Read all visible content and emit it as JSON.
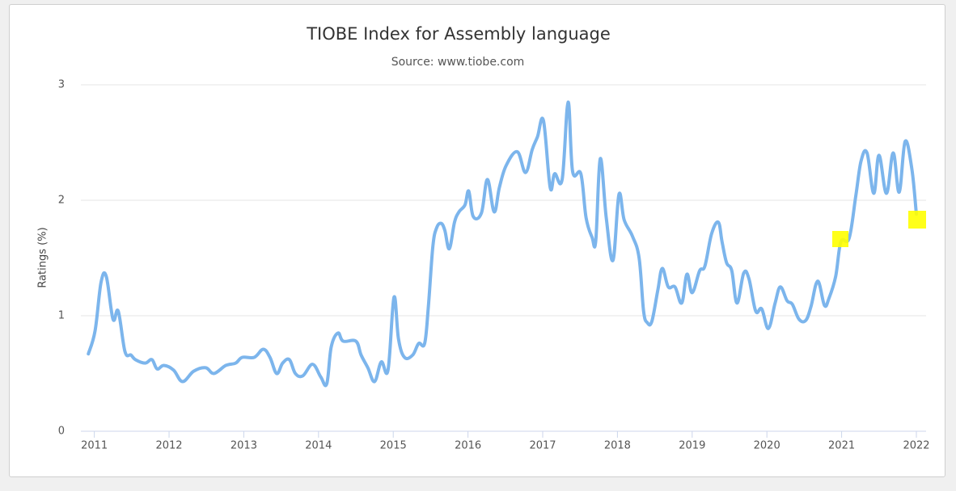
{
  "chart_data": {
    "type": "line",
    "title": "TIOBE Index for Assembly language",
    "subtitle": "Source: www.tiobe.com",
    "y_label": "Ratings (%)",
    "xlim": [
      2010.82,
      2022.13
    ],
    "xticks": [
      2011,
      2012,
      2013,
      2014,
      2015,
      2016,
      2017,
      2018,
      2019,
      2020,
      2021,
      2022
    ],
    "ylim": [
      0,
      3
    ],
    "yticks": [
      0,
      1,
      2,
      3
    ],
    "grid": true,
    "series": [
      {
        "name": "Assembly language",
        "color": "#7cb5ec",
        "x": [
          2010.92,
          2011.01,
          2011.09,
          2011.16,
          2011.25,
          2011.32,
          2011.41,
          2011.49,
          2011.55,
          2011.68,
          2011.77,
          2011.84,
          2011.93,
          2012.06,
          2012.18,
          2012.33,
          2012.49,
          2012.6,
          2012.76,
          2012.89,
          2012.98,
          2013.14,
          2013.26,
          2013.35,
          2013.44,
          2013.52,
          2013.61,
          2013.69,
          2013.79,
          2013.92,
          2014.03,
          2014.11,
          2014.17,
          2014.26,
          2014.33,
          2014.5,
          2014.57,
          2014.66,
          2014.75,
          2014.84,
          2014.93,
          2015.01,
          2015.07,
          2015.15,
          2015.26,
          2015.34,
          2015.42,
          2015.47,
          2015.53,
          2015.58,
          2015.64,
          2015.69,
          2015.75,
          2015.82,
          2015.88,
          2015.96,
          2016.01,
          2016.07,
          2016.18,
          2016.26,
          2016.35,
          2016.42,
          2016.51,
          2016.66,
          2016.77,
          2016.86,
          2016.93,
          2017.01,
          2017.1,
          2017.16,
          2017.26,
          2017.34,
          2017.4,
          2017.51,
          2017.58,
          2017.66,
          2017.71,
          2017.77,
          2017.85,
          2017.94,
          2018.02,
          2018.09,
          2018.2,
          2018.29,
          2018.35,
          2018.4,
          2018.46,
          2018.54,
          2018.6,
          2018.68,
          2018.77,
          2018.86,
          2018.93,
          2019.0,
          2019.1,
          2019.17,
          2019.26,
          2019.35,
          2019.4,
          2019.46,
          2019.53,
          2019.6,
          2019.69,
          2019.76,
          2019.85,
          2019.93,
          2020.02,
          2020.11,
          2020.18,
          2020.27,
          2020.34,
          2020.43,
          2020.52,
          2020.59,
          2020.68,
          2020.77,
          2020.83,
          2020.92,
          2020.99,
          2021.1,
          2021.19,
          2021.26,
          2021.34,
          2021.43,
          2021.5,
          2021.6,
          2021.69,
          2021.77,
          2021.85,
          2021.94,
          2022.0
        ],
        "values": [
          0.67,
          0.87,
          1.29,
          1.34,
          0.97,
          1.04,
          0.69,
          0.66,
          0.62,
          0.59,
          0.62,
          0.54,
          0.57,
          0.53,
          0.43,
          0.52,
          0.55,
          0.5,
          0.57,
          0.59,
          0.64,
          0.64,
          0.71,
          0.64,
          0.5,
          0.59,
          0.62,
          0.5,
          0.48,
          0.58,
          0.47,
          0.41,
          0.73,
          0.85,
          0.78,
          0.78,
          0.66,
          0.55,
          0.43,
          0.6,
          0.53,
          1.16,
          0.8,
          0.64,
          0.66,
          0.76,
          0.76,
          1.08,
          1.6,
          1.76,
          1.8,
          1.74,
          1.58,
          1.81,
          1.9,
          1.96,
          2.08,
          1.86,
          1.89,
          2.18,
          1.9,
          2.11,
          2.3,
          2.42,
          2.24,
          2.44,
          2.55,
          2.69,
          2.11,
          2.23,
          2.18,
          2.85,
          2.25,
          2.23,
          1.85,
          1.68,
          1.65,
          2.36,
          1.85,
          1.48,
          2.05,
          1.83,
          1.69,
          1.5,
          1.04,
          0.94,
          0.95,
          1.22,
          1.41,
          1.25,
          1.25,
          1.11,
          1.36,
          1.2,
          1.39,
          1.43,
          1.71,
          1.81,
          1.64,
          1.46,
          1.39,
          1.11,
          1.37,
          1.32,
          1.04,
          1.06,
          0.89,
          1.11,
          1.25,
          1.13,
          1.1,
          0.97,
          0.96,
          1.08,
          1.3,
          1.09,
          1.15,
          1.34,
          1.64,
          1.67,
          2.04,
          2.34,
          2.41,
          2.06,
          2.39,
          2.06,
          2.41,
          2.07,
          2.51,
          2.27,
          1.88
        ]
      }
    ]
  }
}
